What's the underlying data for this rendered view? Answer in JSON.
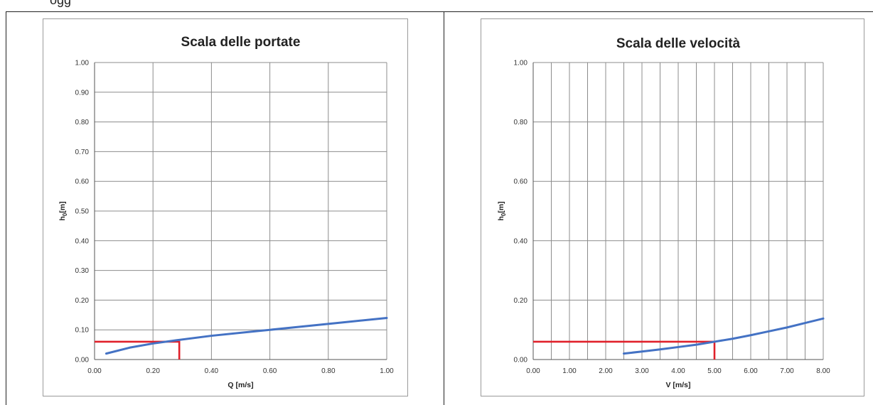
{
  "page": {
    "top_fragment": "ogg"
  },
  "chart_data": [
    {
      "type": "line",
      "title": "Scala delle portate",
      "xlabel": "Q [m/s]",
      "ylabel": "h0[m]",
      "ylabel_main": "h",
      "ylabel_sub": "0",
      "ylabel_unit": "[m]",
      "xlim": [
        0,
        1
      ],
      "ylim": [
        0,
        1
      ],
      "x_ticks": [
        0,
        0.2,
        0.4,
        0.6,
        0.8,
        1.0
      ],
      "x_tick_labels": [
        "0.00",
        "0.20",
        "0.40",
        "0.60",
        "0.80",
        "1.00"
      ],
      "y_ticks": [
        0,
        0.1,
        0.2,
        0.3,
        0.4,
        0.5,
        0.6,
        0.7,
        0.8,
        0.9,
        1.0
      ],
      "y_tick_labels": [
        "0.00",
        "0.10",
        "0.20",
        "0.30",
        "0.40",
        "0.50",
        "0.60",
        "0.70",
        "0.80",
        "0.90",
        "1.00"
      ],
      "grid": true,
      "legend": "none",
      "series": [
        {
          "color": "#4472c4",
          "x": [
            0.04,
            0.12,
            0.2,
            0.28,
            0.4,
            0.55,
            0.7,
            0.85,
            1.0
          ],
          "y": [
            0.02,
            0.04,
            0.054,
            0.065,
            0.08,
            0.095,
            0.11,
            0.125,
            0.14
          ]
        }
      ],
      "markers": [
        {
          "color": "#e0202a",
          "x": [
            0,
            0.29,
            0.29
          ],
          "y": [
            0.06,
            0.06,
            0
          ]
        }
      ]
    },
    {
      "type": "line",
      "title": "Scala delle velocità",
      "xlabel": "V [m/s]",
      "ylabel": "h0[m]",
      "ylabel_main": "h",
      "ylabel_sub": "0",
      "ylabel_unit": "[m]",
      "xlim": [
        0,
        8
      ],
      "ylim": [
        0,
        1
      ],
      "x_ticks": [
        0,
        1,
        2,
        3,
        4,
        5,
        6,
        7,
        8
      ],
      "x_tick_labels": [
        "0.00",
        "1.00",
        "2.00",
        "3.00",
        "4.00",
        "5.00",
        "6.00",
        "7.00",
        "8.00"
      ],
      "y_ticks": [
        0,
        0.2,
        0.4,
        0.6,
        0.8,
        1.0
      ],
      "y_tick_labels": [
        "0.00",
        "0.20",
        "0.40",
        "0.60",
        "0.80",
        "1.00"
      ],
      "x_grid": [
        0,
        0.5,
        1,
        1.5,
        2,
        2.5,
        3,
        3.5,
        4,
        4.5,
        5,
        5.5,
        6,
        6.5,
        7,
        7.5,
        8
      ],
      "grid": true,
      "legend": "none",
      "series": [
        {
          "color": "#4472c4",
          "x": [
            2.5,
            3.0,
            3.5,
            4.0,
            4.5,
            5.0,
            5.5,
            6.0,
            6.5,
            7.0,
            7.5,
            8.0
          ],
          "y": [
            0.02,
            0.027,
            0.034,
            0.042,
            0.05,
            0.06,
            0.07,
            0.082,
            0.095,
            0.108,
            0.123,
            0.138
          ]
        }
      ],
      "markers": [
        {
          "color": "#e0202a",
          "x": [
            0,
            5.0,
            5.0
          ],
          "y": [
            0.06,
            0.06,
            0
          ]
        }
      ]
    }
  ]
}
